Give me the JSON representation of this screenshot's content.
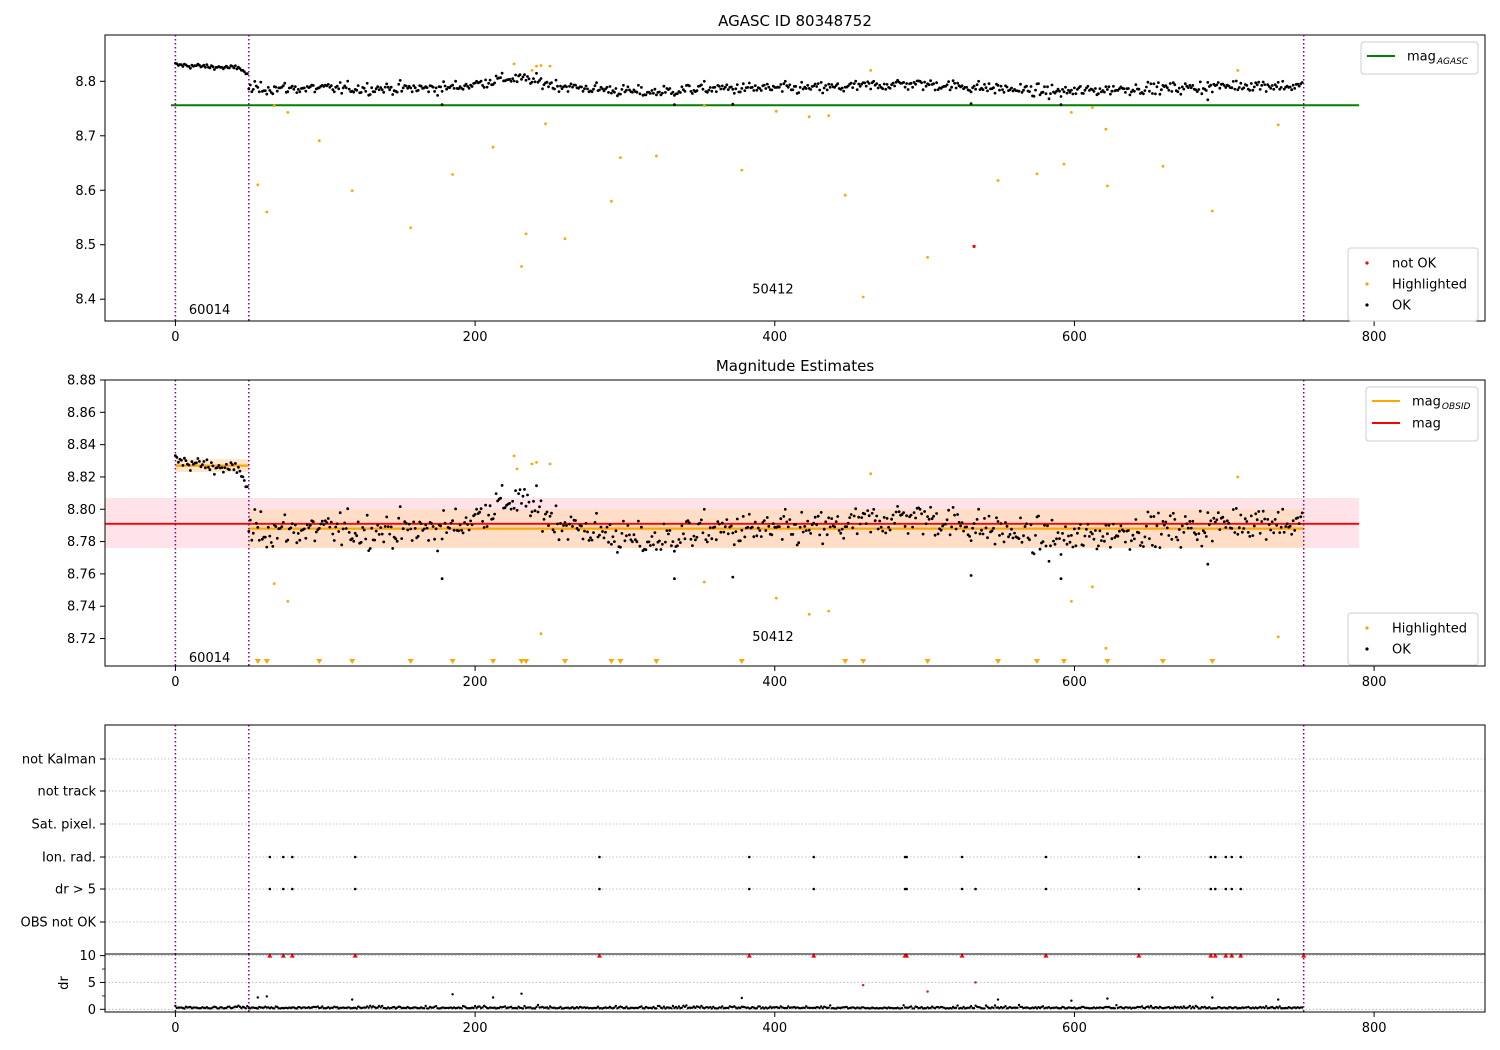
{
  "colors": {
    "ok": "#000000",
    "highlighted": "#ffa500",
    "not_ok": "#ff0000",
    "mag_agasc": "#008000",
    "mag_obsid": "#ffa500",
    "mag": "#ff0000",
    "obs_boundary": "#800080",
    "mag_band": "#ffc0cb",
    "obsid_band": "#ffdab9",
    "gridline": "#b0b0b0"
  },
  "chart_data": [
    {
      "type": "scatter",
      "title": "AGASC ID 80348752",
      "xlim": [
        -47,
        874
      ],
      "ylim": [
        8.36,
        8.885
      ],
      "xticks": [
        0,
        200,
        400,
        600,
        800
      ],
      "yticks": [
        8.4,
        8.5,
        8.6,
        8.7,
        8.8
      ],
      "yticks_text": [
        "8.4",
        "8.5",
        "8.6",
        "8.7",
        "8.8"
      ],
      "obs_boundaries": [
        0,
        49,
        753
      ],
      "obs_labels": [
        {
          "x": 9,
          "y": 8.38,
          "text": "60014"
        },
        {
          "x": 385,
          "y": 8.418,
          "text": "50412"
        }
      ],
      "lines": [
        {
          "name": "mag",
          "name_sub": "AGASC",
          "y": 8.756,
          "x0": -3,
          "x1": 790,
          "color_key": "mag_agasc"
        }
      ],
      "legend_upper": {
        "position": "upper right",
        "entries": [
          {
            "label": "mag",
            "sub": "AGASC",
            "color_key": "mag_agasc",
            "kind": "line"
          }
        ]
      },
      "legend_lower": {
        "position": "lower right",
        "entries": [
          {
            "label": "not OK",
            "color_key": "not_ok",
            "kind": "dot"
          },
          {
            "label": "Highlighted",
            "color_key": "highlighted",
            "kind": "dot"
          },
          {
            "label": "OK",
            "color_key": "ok",
            "kind": "dot"
          }
        ]
      },
      "series": [
        {
          "name": "OK",
          "color_key": "ok",
          "generator": "ok_mag"
        },
        {
          "name": "Highlighted",
          "color_key": "highlighted",
          "points": [
            [
              55,
              8.61
            ],
            [
              61,
              8.56
            ],
            [
              66,
              8.755
            ],
            [
              75,
              8.743
            ],
            [
              96,
              8.691
            ],
            [
              118,
              8.599
            ],
            [
              157,
              8.531
            ],
            [
              185,
              8.629
            ],
            [
              212,
              8.679
            ],
            [
              226,
              8.832
            ],
            [
              231,
              8.46
            ],
            [
              234,
              8.52
            ],
            [
              238,
              8.82
            ],
            [
              241,
              8.828
            ],
            [
              244,
              8.829
            ],
            [
              247,
              8.722
            ],
            [
              250,
              8.828
            ],
            [
              260,
              8.511
            ],
            [
              291,
              8.58
            ],
            [
              297,
              8.66
            ],
            [
              321,
              8.663
            ],
            [
              353,
              8.755
            ],
            [
              378,
              8.637
            ],
            [
              401,
              8.745
            ],
            [
              423,
              8.735
            ],
            [
              436,
              8.737
            ],
            [
              447,
              8.591
            ],
            [
              459,
              8.404
            ],
            [
              464,
              8.82
            ],
            [
              502,
              8.477
            ],
            [
              549,
              8.618
            ],
            [
              575,
              8.63
            ],
            [
              593,
              8.648
            ],
            [
              598,
              8.743
            ],
            [
              612,
              8.752
            ],
            [
              621,
              8.712
            ],
            [
              622,
              8.608
            ],
            [
              659,
              8.644
            ],
            [
              692,
              8.562
            ],
            [
              709,
              8.82
            ],
            [
              736,
              8.72
            ]
          ]
        },
        {
          "name": "not OK",
          "color_key": "not_ok",
          "points": [
            [
              533,
              8.497
            ]
          ]
        }
      ]
    },
    {
      "type": "scatter",
      "title": "Magnitude Estimates",
      "xlim": [
        -47,
        874
      ],
      "ylim": [
        8.703,
        8.88
      ],
      "xticks": [
        0,
        200,
        400,
        600,
        800
      ],
      "yticks": [
        8.72,
        8.74,
        8.76,
        8.78,
        8.8,
        8.82,
        8.84,
        8.86,
        8.88
      ],
      "yticks_text": [
        "8.72",
        "8.74",
        "8.76",
        "8.78",
        "8.80",
        "8.82",
        "8.84",
        "8.86",
        "8.88"
      ],
      "obs_boundaries": [
        0,
        49,
        753
      ],
      "obs_labels": [
        {
          "x": 9,
          "y": 8.708,
          "text": "60014"
        },
        {
          "x": 385,
          "y": 8.721,
          "text": "50412"
        }
      ],
      "bands": [
        {
          "y0": 8.776,
          "y1": 8.807,
          "x0": -47,
          "x1": 790,
          "color_key": "mag_band"
        },
        {
          "y0": 8.823,
          "y1": 8.831,
          "x0": 0,
          "x1": 49,
          "color_key": "obsid_band"
        },
        {
          "y0": 8.776,
          "y1": 8.8,
          "x0": 49,
          "x1": 753,
          "color_key": "obsid_band"
        }
      ],
      "lines": [
        {
          "name": "mag",
          "y": 8.791,
          "x0": -47,
          "x1": 790,
          "color_key": "mag"
        },
        {
          "name": "mag",
          "name_sub": "OBSID",
          "y": 8.827,
          "x0": 0,
          "x1": 49,
          "color_key": "mag_obsid"
        },
        {
          "name": "mag",
          "name_sub": "OBSID",
          "y": 8.788,
          "x0": 49,
          "x1": 753,
          "color_key": "mag_obsid"
        }
      ],
      "legend_upper": {
        "position": "upper right",
        "entries": [
          {
            "label": "mag",
            "sub": "OBSID",
            "color_key": "mag_obsid",
            "kind": "line"
          },
          {
            "label": "mag",
            "sub": "",
            "color_key": "mag",
            "kind": "line"
          }
        ]
      },
      "legend_lower": {
        "position": "lower right",
        "entries": [
          {
            "label": "Highlighted",
            "color_key": "highlighted",
            "kind": "dot"
          },
          {
            "label": "OK",
            "color_key": "ok",
            "kind": "dot"
          }
        ]
      },
      "series": [
        {
          "name": "OK",
          "color_key": "ok",
          "generator": "ok_mag"
        },
        {
          "name": "Highlighted",
          "color_key": "highlighted",
          "points": [
            [
              66,
              8.754
            ],
            [
              75,
              8.743
            ],
            [
              226,
              8.833
            ],
            [
              228,
              8.825
            ],
            [
              238,
              8.828
            ],
            [
              241,
              8.829
            ],
            [
              244,
              8.723
            ],
            [
              250,
              8.828
            ],
            [
              353,
              8.755
            ],
            [
              401,
              8.745
            ],
            [
              423,
              8.735
            ],
            [
              436,
              8.737
            ],
            [
              464,
              8.822
            ],
            [
              598,
              8.743
            ],
            [
              612,
              8.752
            ],
            [
              621,
              8.714
            ],
            [
              709,
              8.82
            ],
            [
              736,
              8.721
            ]
          ]
        },
        {
          "name": "Highlighted (out of range)",
          "color_key": "highlighted",
          "marker": "triangle-down",
          "x_only": [
            55,
            61,
            96,
            118,
            157,
            185,
            212,
            231,
            234,
            260,
            291,
            297,
            321,
            378,
            447,
            459,
            502,
            549,
            575,
            593,
            622,
            659,
            692
          ]
        }
      ]
    },
    {
      "type": "scatter",
      "title": "",
      "xlim": [
        -47,
        874
      ],
      "obs_boundaries": [
        0,
        49,
        753
      ],
      "flag_rows": [
        "not Kalman",
        "not track",
        "Sat. pixel.",
        "Ion. rad.",
        "dr > 5",
        "OBS not OK"
      ],
      "flag_points": {
        "Ion. rad.": [
          63,
          72,
          78,
          120,
          283,
          383,
          426,
          487,
          488,
          525,
          581,
          643,
          691,
          694,
          701,
          705,
          711
        ],
        "dr > 5": [
          63,
          72,
          78,
          120,
          283,
          383,
          426,
          487,
          488,
          525,
          534,
          581,
          643,
          691,
          694,
          701,
          705,
          711
        ]
      },
      "dr": {
        "ylabel": "dr",
        "ylim": [
          -0.5,
          10.3
        ],
        "yticks": [
          0,
          5,
          10
        ],
        "yticks_text": [
          "0",
          "5",
          "10"
        ],
        "clip_value": 10,
        "clipped_x": [
          63,
          72,
          78,
          120,
          283,
          383,
          426,
          487,
          488,
          525,
          581,
          643,
          691,
          694,
          701,
          705,
          711,
          753
        ],
        "highlight_points": [
          [
            459,
            4.5
          ],
          [
            502,
            3.3
          ],
          [
            534,
            5.0
          ]
        ],
        "ok_generator": "ok_dr"
      }
    }
  ]
}
